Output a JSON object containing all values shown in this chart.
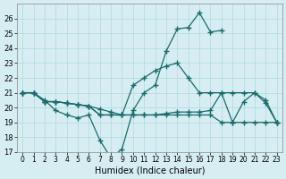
{
  "title": "",
  "xlabel": "Humidex (Indice chaleur)",
  "ylabel": "",
  "bg_color": "#d6eef2",
  "line_color": "#1a6b6b",
  "grid_color": "#b0d8e0",
  "xlim": [
    -0.5,
    23.5
  ],
  "ylim": [
    17,
    27
  ],
  "xticks": [
    0,
    1,
    2,
    3,
    4,
    5,
    6,
    7,
    8,
    9,
    10,
    11,
    12,
    13,
    14,
    15,
    16,
    17,
    18,
    19,
    20,
    21,
    22,
    23
  ],
  "yticks": [
    17,
    18,
    19,
    20,
    21,
    22,
    23,
    24,
    25,
    26
  ],
  "series1": {
    "x": [
      0,
      1,
      2,
      3,
      4,
      5,
      6,
      7,
      8,
      9,
      10,
      11,
      12,
      13,
      14,
      15,
      16,
      17,
      18
    ],
    "y": [
      21.0,
      21.0,
      20.5,
      19.8,
      19.5,
      19.3,
      19.5,
      17.8,
      16.6,
      17.2,
      19.8,
      21.0,
      21.5,
      23.8,
      25.3,
      25.4,
      26.4,
      25.1,
      25.2
    ]
  },
  "series2": {
    "x": [
      0,
      1,
      2,
      3,
      4,
      5,
      6,
      7,
      8,
      9,
      10,
      11,
      12,
      13,
      14,
      15,
      16,
      17,
      18,
      19,
      20,
      21,
      22,
      23
    ],
    "y": [
      21.0,
      21.0,
      20.4,
      20.4,
      20.3,
      20.2,
      20.1,
      19.9,
      19.7,
      19.5,
      19.5,
      19.5,
      19.5,
      19.6,
      19.7,
      19.7,
      19.7,
      19.8,
      21.0,
      19.0,
      20.4,
      21.0,
      20.3,
      19.0
    ]
  },
  "series3": {
    "x": [
      0,
      1,
      2,
      3,
      4,
      5,
      6,
      7,
      8,
      9,
      10,
      11,
      12,
      13,
      14,
      15,
      16,
      17,
      18,
      19,
      20,
      21,
      22,
      23
    ],
    "y": [
      21.0,
      21.0,
      20.4,
      20.4,
      20.3,
      20.2,
      20.1,
      19.5,
      19.5,
      19.5,
      21.5,
      22.0,
      22.5,
      22.8,
      23.0,
      22.0,
      21.0,
      21.0,
      21.0,
      21.0,
      21.0,
      21.0,
      20.5,
      19.0
    ]
  },
  "series4": {
    "x": [
      0,
      1,
      2,
      3,
      4,
      5,
      6,
      7,
      8,
      9,
      10,
      11,
      12,
      13,
      14,
      15,
      16,
      17,
      18,
      19,
      20,
      21,
      22,
      23
    ],
    "y": [
      21.0,
      21.0,
      20.4,
      20.4,
      20.3,
      20.2,
      20.1,
      19.5,
      19.5,
      19.5,
      19.5,
      19.5,
      19.5,
      19.5,
      19.5,
      19.5,
      19.5,
      19.5,
      19.0,
      19.0,
      19.0,
      19.0,
      19.0,
      19.0
    ]
  }
}
